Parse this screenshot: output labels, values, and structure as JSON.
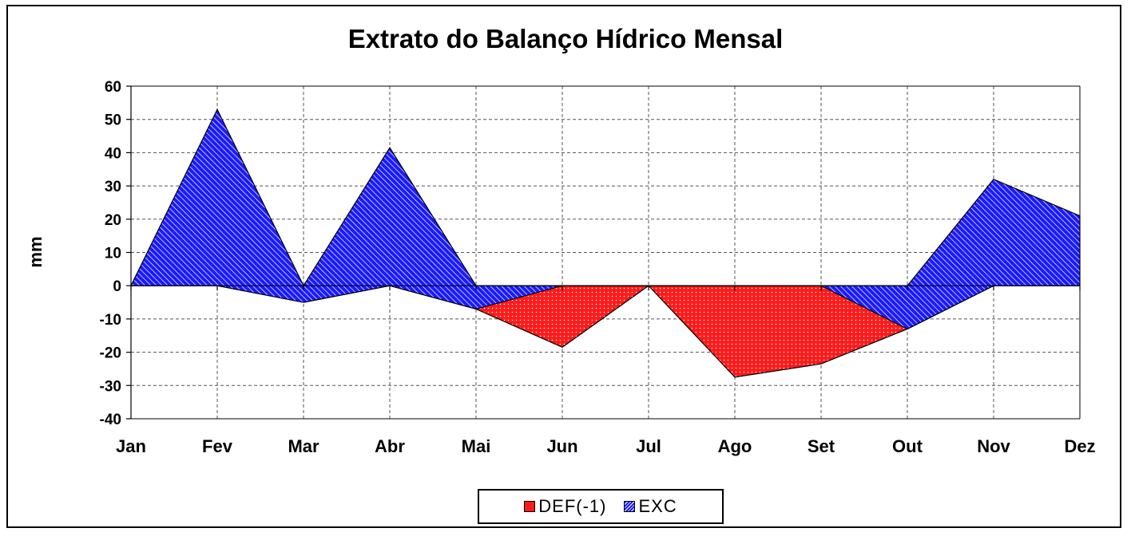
{
  "chart_data": {
    "type": "area",
    "title": "Extrato do Balanço Hídrico Mensal",
    "xlabel": "",
    "ylabel": "mm",
    "categories": [
      "Jan",
      "Fev",
      "Mar",
      "Abr",
      "Mai",
      "Jun",
      "Jul",
      "Ago",
      "Set",
      "Out",
      "Nov",
      "Dez"
    ],
    "ylim": [
      -40,
      60
    ],
    "yticks": [
      60,
      50,
      40,
      30,
      20,
      10,
      0,
      -10,
      -20,
      -30,
      -40
    ],
    "grid": true,
    "legend_position": "bottom",
    "series": [
      {
        "name": "DEF(-1)",
        "values": [
          0,
          0,
          -5,
          0,
          -7,
          -18.5,
          0,
          -27.5,
          -23.5,
          -13,
          0,
          0
        ],
        "color": "#ff2020",
        "pattern": "dotted"
      },
      {
        "name": "EXC",
        "values": [
          0,
          53,
          0,
          41.5,
          0,
          0,
          0,
          0,
          0,
          0,
          32,
          21
        ],
        "color": "#1a1aff",
        "pattern": "diagonal-hatch"
      }
    ]
  }
}
